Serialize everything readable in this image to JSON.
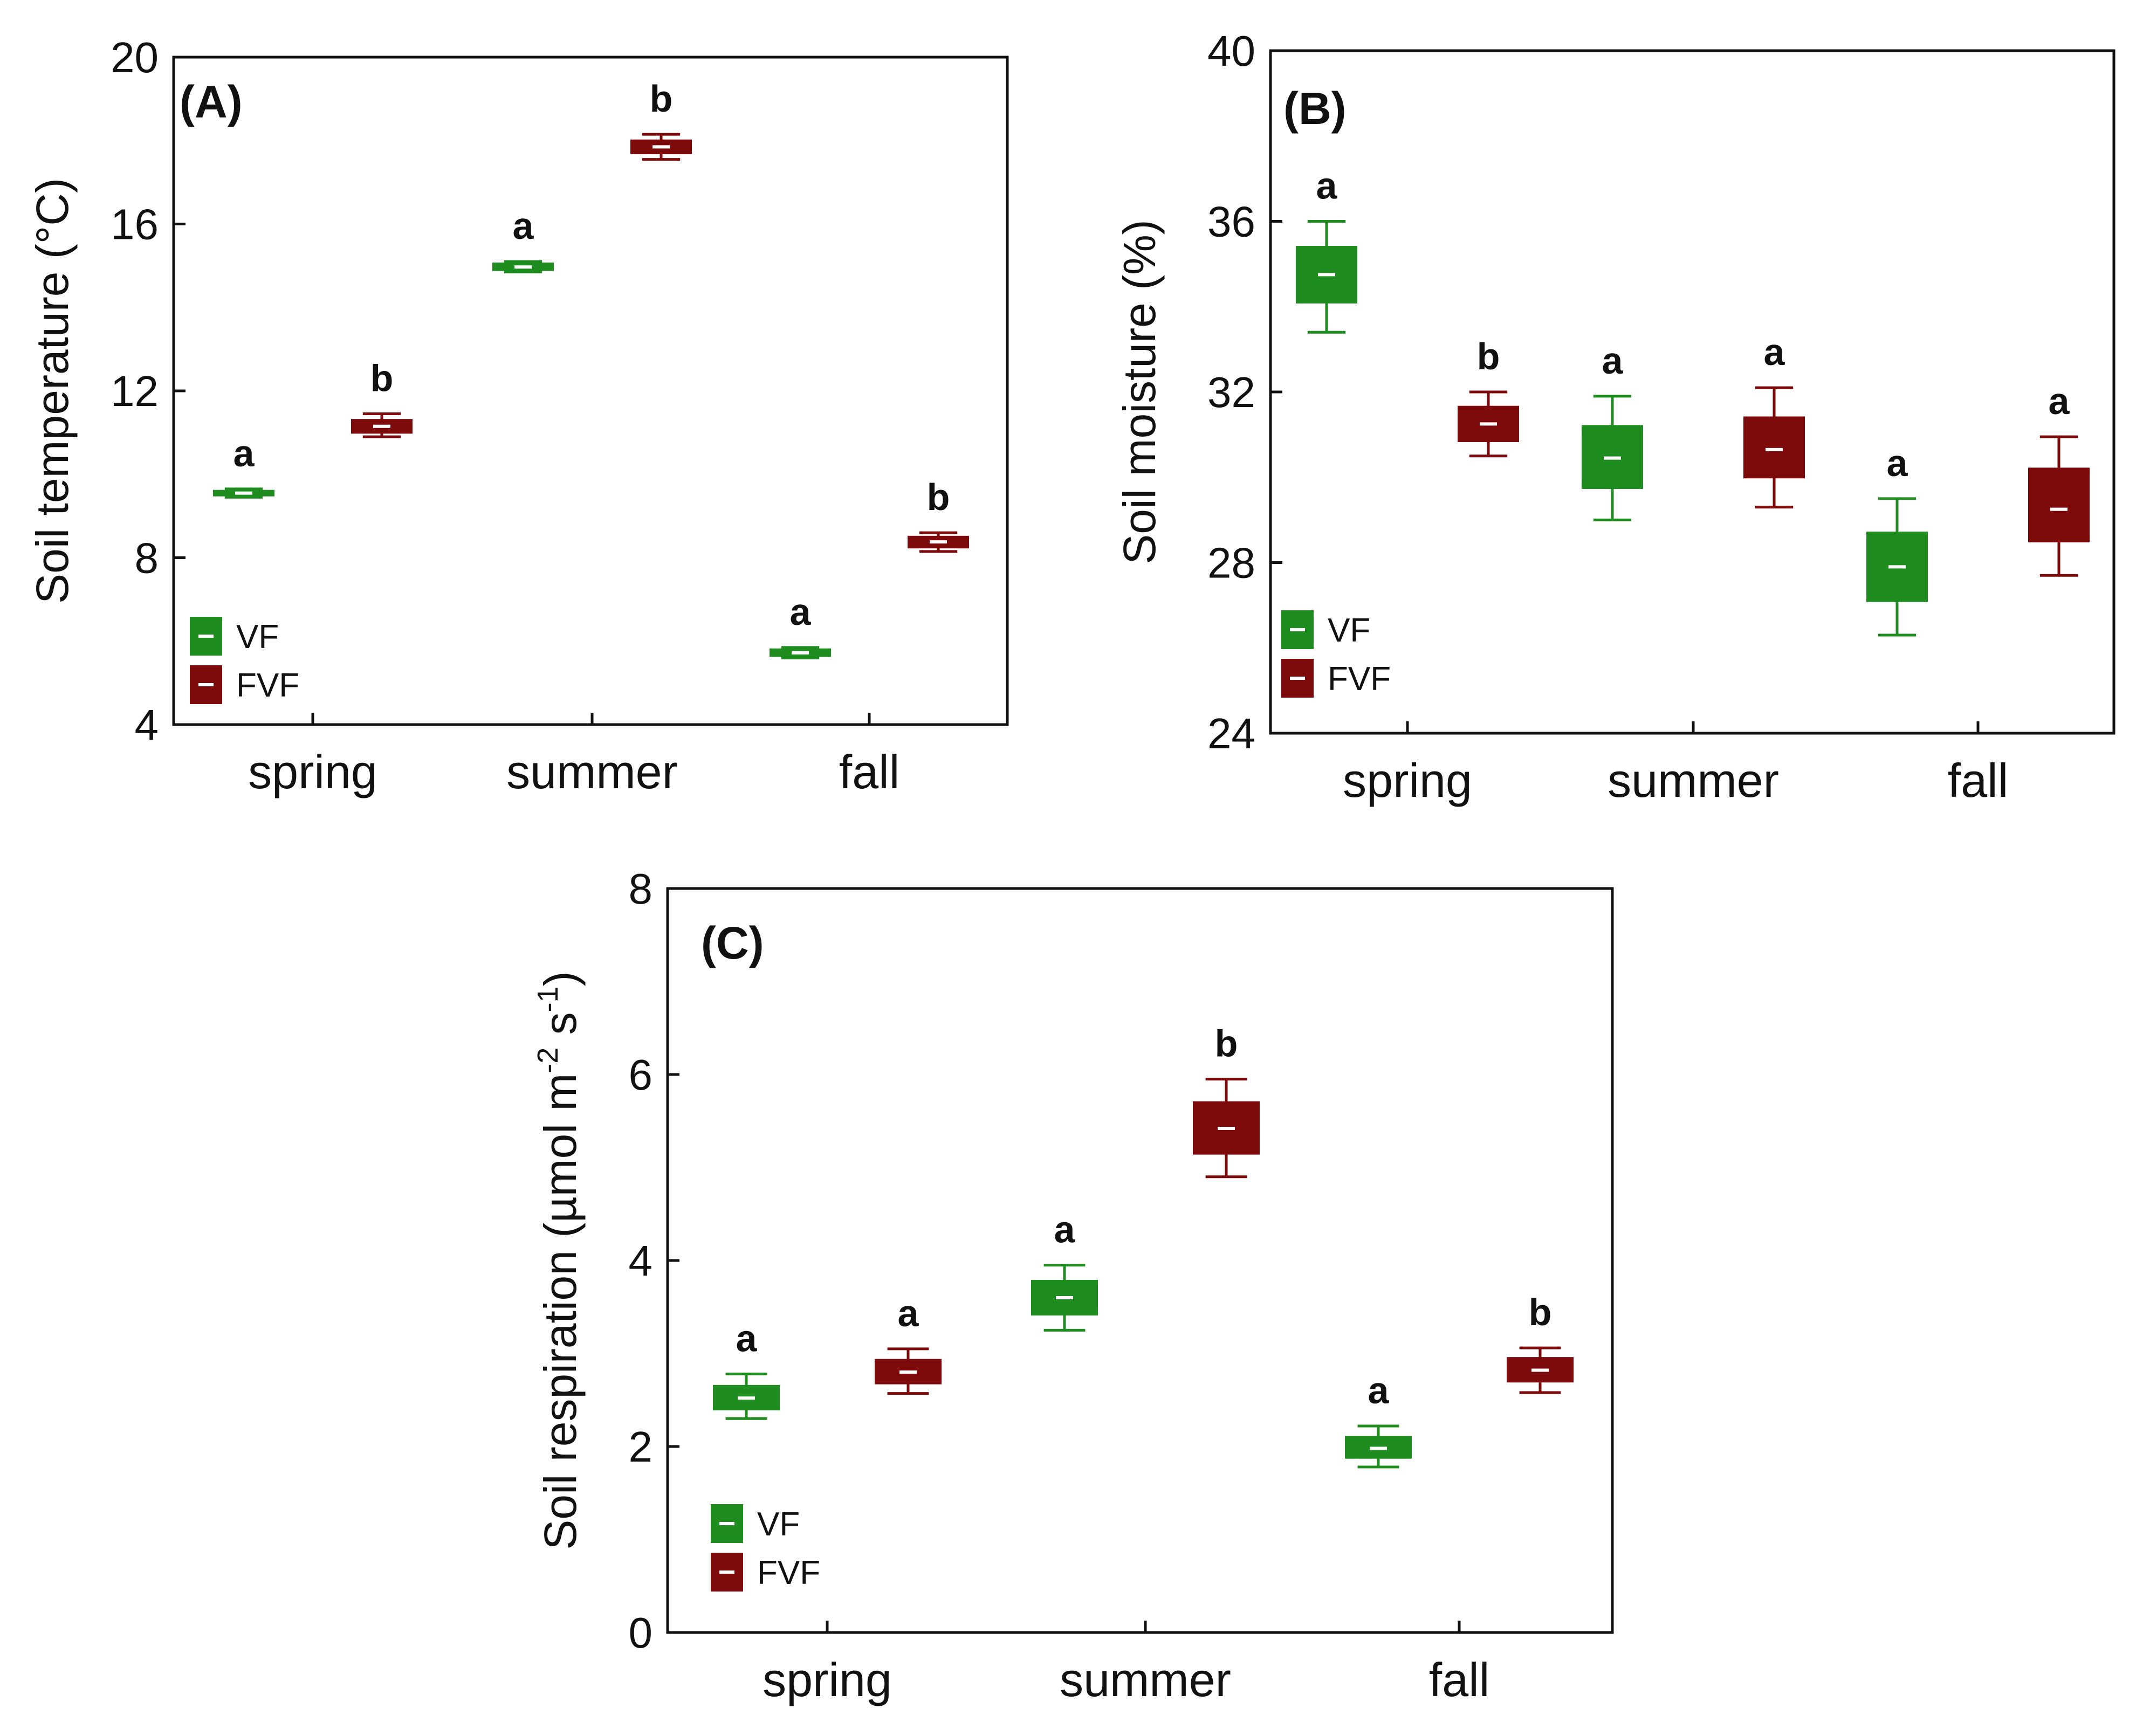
{
  "figure": {
    "series_names": [
      "VF",
      "FVF"
    ],
    "colors": {
      "VF": "#1e8c1e",
      "FVF": "#7d0a0a"
    }
  },
  "chart_data": [
    {
      "type": "box",
      "panel_label": "(A)",
      "ylabel": "Soil temperature (°C)",
      "xlabel": "",
      "categories": [
        "spring",
        "summer",
        "fall"
      ],
      "ylim": [
        4,
        20
      ],
      "yticks": [
        4,
        8,
        12,
        16,
        20
      ],
      "legend": [
        "VF",
        "FVF"
      ],
      "legend_position": "bottom-left",
      "series": [
        {
          "name": "VF",
          "boxes": [
            {
              "min": 9.45,
              "q1": 9.5,
              "median": 9.55,
              "q3": 9.6,
              "max": 9.65,
              "letter": "a"
            },
            {
              "min": 14.85,
              "q1": 14.9,
              "median": 14.97,
              "q3": 15.05,
              "max": 15.1,
              "letter": "a"
            },
            {
              "min": 5.6,
              "q1": 5.65,
              "median": 5.72,
              "q3": 5.8,
              "max": 5.85,
              "letter": "a"
            }
          ]
        },
        {
          "name": "FVF",
          "boxes": [
            {
              "min": 10.9,
              "q1": 11.0,
              "median": 11.15,
              "q3": 11.3,
              "max": 11.45,
              "letter": "b"
            },
            {
              "min": 17.55,
              "q1": 17.7,
              "median": 17.85,
              "q3": 18.0,
              "max": 18.15,
              "letter": "b"
            },
            {
              "min": 8.15,
              "q1": 8.25,
              "median": 8.38,
              "q3": 8.5,
              "max": 8.6,
              "letter": "b"
            }
          ]
        }
      ]
    },
    {
      "type": "box",
      "panel_label": "(B)",
      "ylabel": "Soil moisture (%)",
      "xlabel": "",
      "categories": [
        "spring",
        "summer",
        "fall"
      ],
      "ylim": [
        24,
        40
      ],
      "yticks": [
        24,
        28,
        32,
        36,
        40
      ],
      "legend": [
        "VF",
        "FVF"
      ],
      "legend_position": "bottom-left",
      "series": [
        {
          "name": "VF",
          "boxes": [
            {
              "min": 33.4,
              "q1": 34.1,
              "median": 34.75,
              "q3": 35.4,
              "max": 36.0,
              "letter": "a"
            },
            {
              "min": 29.0,
              "q1": 29.75,
              "median": 30.45,
              "q3": 31.2,
              "max": 31.9,
              "letter": "a"
            },
            {
              "min": 26.3,
              "q1": 27.1,
              "median": 27.9,
              "q3": 28.7,
              "max": 29.5,
              "letter": "a"
            }
          ]
        },
        {
          "name": "FVF",
          "boxes": [
            {
              "min": 30.5,
              "q1": 30.85,
              "median": 31.25,
              "q3": 31.65,
              "max": 32.0,
              "letter": "b"
            },
            {
              "min": 29.3,
              "q1": 30.0,
              "median": 30.65,
              "q3": 31.4,
              "max": 32.1,
              "letter": "a"
            },
            {
              "min": 27.7,
              "q1": 28.5,
              "median": 29.25,
              "q3": 30.2,
              "max": 30.95,
              "letter": "a"
            }
          ]
        }
      ]
    },
    {
      "type": "box",
      "panel_label": "(C)",
      "ylabel": "Soil respiration (µmol m-2 s-1)",
      "ylabel_parts": {
        "main": "Soil respiration (µmol m",
        "sup1": "-2",
        "mid": " s",
        "sup2": "-1",
        "end": ")"
      },
      "xlabel": "",
      "categories": [
        "spring",
        "summer",
        "fall"
      ],
      "ylim": [
        0,
        8
      ],
      "yticks": [
        0,
        2,
        4,
        6,
        8
      ],
      "legend": [
        "VF",
        "FVF"
      ],
      "legend_position": "bottom-left",
      "series": [
        {
          "name": "VF",
          "boxes": [
            {
              "min": 2.3,
              "q1": 2.4,
              "median": 2.52,
              "q3": 2.65,
              "max": 2.78,
              "letter": "a"
            },
            {
              "min": 3.25,
              "q1": 3.42,
              "median": 3.6,
              "q3": 3.78,
              "max": 3.95,
              "letter": "a"
            },
            {
              "min": 1.78,
              "q1": 1.88,
              "median": 1.98,
              "q3": 2.1,
              "max": 2.22,
              "letter": "a"
            }
          ]
        },
        {
          "name": "FVF",
          "boxes": [
            {
              "min": 2.57,
              "q1": 2.68,
              "median": 2.8,
              "q3": 2.93,
              "max": 3.05,
              "letter": "a"
            },
            {
              "min": 4.9,
              "q1": 5.15,
              "median": 5.42,
              "q3": 5.7,
              "max": 5.95,
              "letter": "b"
            },
            {
              "min": 2.58,
              "q1": 2.7,
              "median": 2.82,
              "q3": 2.95,
              "max": 3.06,
              "letter": "b"
            }
          ]
        }
      ]
    }
  ]
}
